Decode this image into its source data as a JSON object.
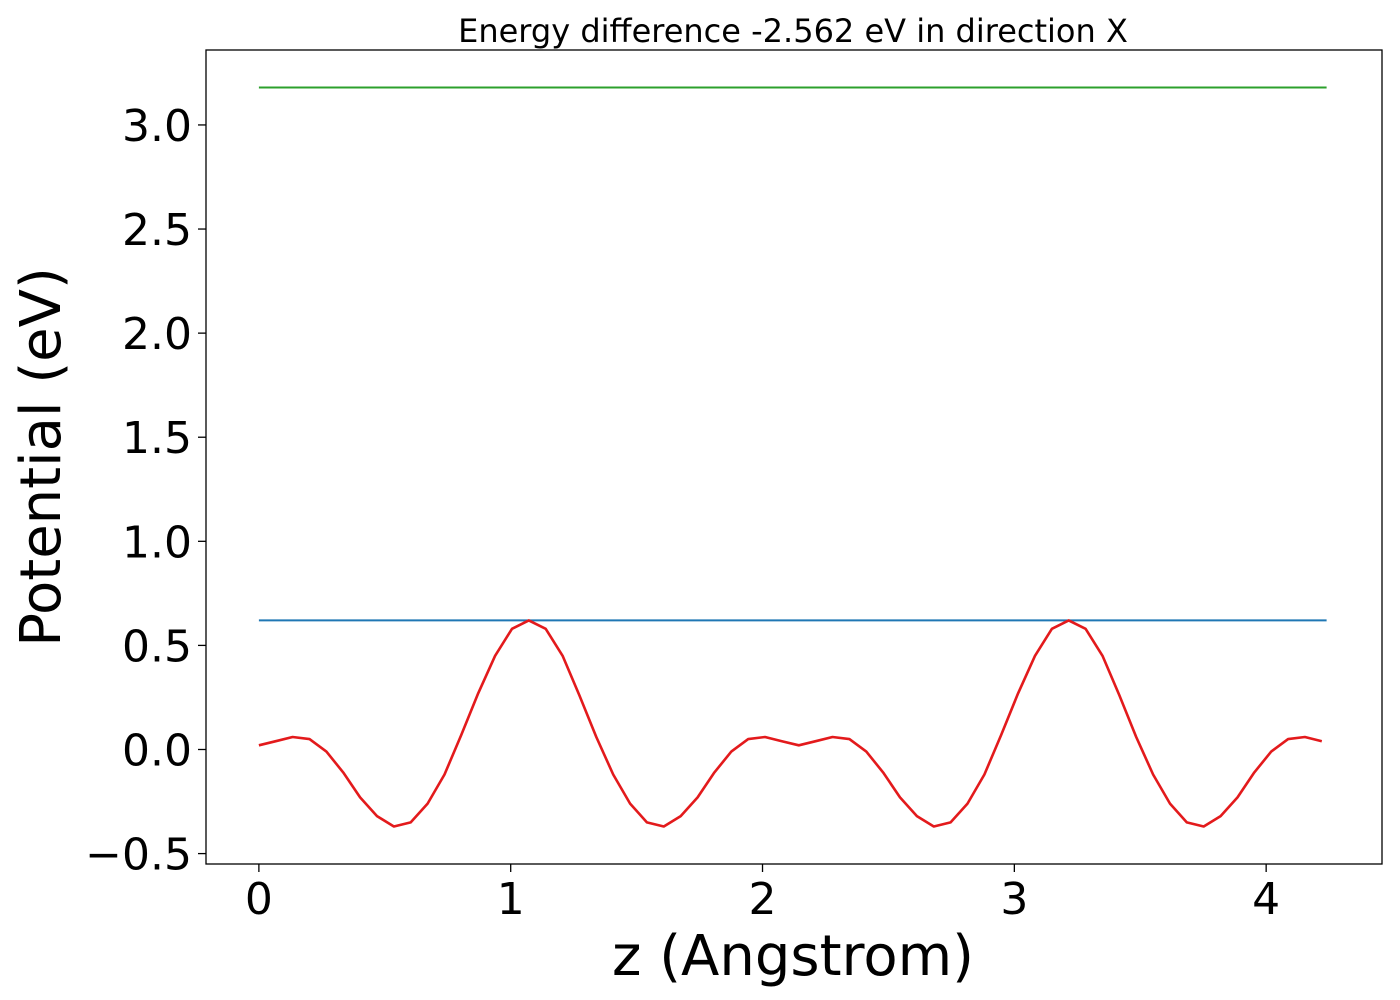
{
  "chart_data": {
    "type": "line",
    "title": "Energy difference -2.562 eV in direction X",
    "xlabel": "z (Angstrom)",
    "ylabel": "Potential (eV)",
    "xlim": [
      -0.21,
      4.46
    ],
    "ylim": [
      -0.55,
      3.36
    ],
    "xticks": [
      0,
      1,
      2,
      3,
      4
    ],
    "xtick_labels": [
      "0",
      "1",
      "2",
      "3",
      "4"
    ],
    "yticks": [
      -0.5,
      0.0,
      0.5,
      1.0,
      1.5,
      2.0,
      2.5,
      3.0
    ],
    "ytick_labels": [
      "−0.5",
      "0.0",
      "0.5",
      "1.0",
      "1.5",
      "2.0",
      "2.5",
      "3.0"
    ],
    "grid": false,
    "series": [
      {
        "color": "#2ca02c",
        "kind": "hline",
        "x": [
          0,
          4.24
        ],
        "y": [
          3.18,
          3.18
        ]
      },
      {
        "color": "#1f77b4",
        "kind": "hline",
        "x": [
          0,
          4.24
        ],
        "y": [
          0.62,
          0.62
        ]
      },
      {
        "color": "#e31a1c",
        "kind": "line",
        "x": [
          0.0,
          0.067,
          0.134,
          0.201,
          0.268,
          0.335,
          0.402,
          0.469,
          0.536,
          0.603,
          0.67,
          0.737,
          0.804,
          0.871,
          0.938,
          1.005,
          1.072,
          1.139,
          1.206,
          1.273,
          1.34,
          1.407,
          1.474,
          1.541,
          1.608,
          1.675,
          1.742,
          1.809,
          1.876,
          1.943,
          2.01,
          2.077,
          2.144,
          2.211,
          2.278,
          2.345,
          2.412,
          2.479,
          2.546,
          2.613,
          2.68,
          2.747,
          2.814,
          2.881,
          2.948,
          3.015,
          3.082,
          3.149,
          3.216,
          3.283,
          3.35,
          3.417,
          3.484,
          3.551,
          3.618,
          3.685,
          3.752,
          3.819,
          3.886,
          3.953,
          4.02,
          4.087,
          4.154,
          4.221
        ],
        "y": [
          0.02,
          0.04,
          0.06,
          0.05,
          -0.01,
          -0.11,
          -0.23,
          -0.32,
          -0.37,
          -0.35,
          -0.26,
          -0.12,
          0.07,
          0.27,
          0.45,
          0.58,
          0.62,
          0.58,
          0.45,
          0.26,
          0.06,
          -0.12,
          -0.26,
          -0.35,
          -0.37,
          -0.32,
          -0.23,
          -0.11,
          -0.01,
          0.05,
          0.06,
          0.04,
          0.02,
          0.04,
          0.06,
          0.05,
          -0.01,
          -0.11,
          -0.23,
          -0.32,
          -0.37,
          -0.35,
          -0.26,
          -0.12,
          0.07,
          0.27,
          0.45,
          0.58,
          0.62,
          0.58,
          0.45,
          0.26,
          0.06,
          -0.12,
          -0.26,
          -0.35,
          -0.37,
          -0.32,
          -0.23,
          -0.11,
          -0.01,
          0.05,
          0.06,
          0.04
        ]
      }
    ]
  }
}
